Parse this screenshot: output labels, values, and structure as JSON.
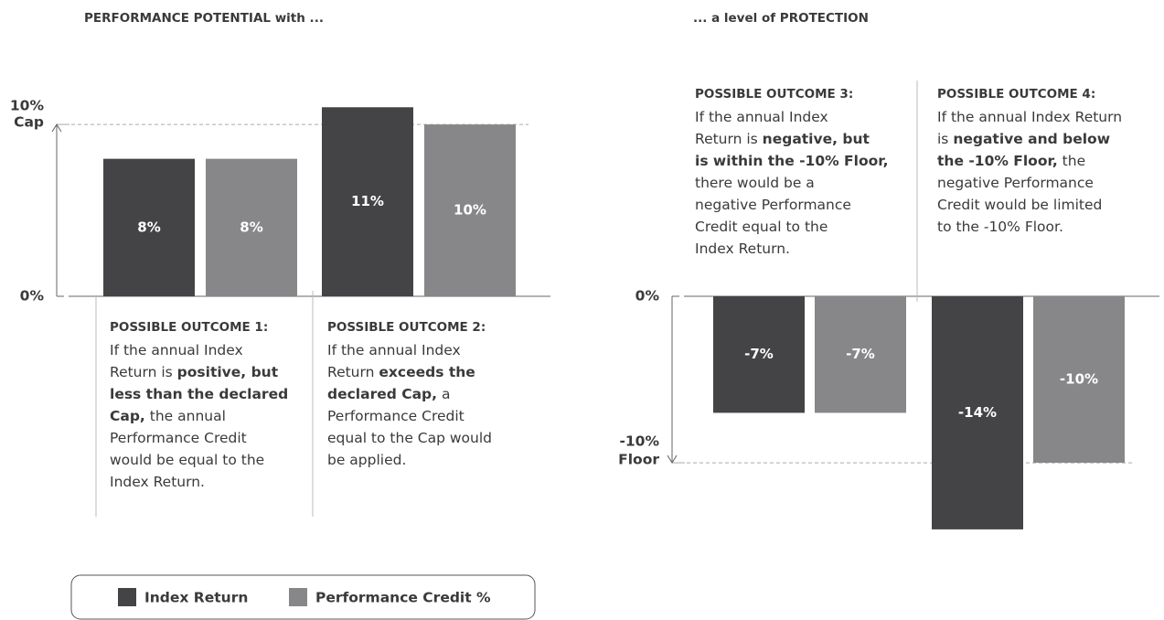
{
  "chart_data": [
    {
      "type": "bar",
      "title": "PERFORMANCE POTENTIAL with ...",
      "ylim": [
        0,
        11.6
      ],
      "yticks": [
        {
          "value": 0,
          "label": "0%"
        },
        {
          "value": 10,
          "label": "10%"
        }
      ],
      "threshold_label": "Cap",
      "series": [
        {
          "name": "Index Return",
          "color": "#444447",
          "values": [
            8,
            11
          ],
          "value_labels": [
            "8%",
            "11%"
          ]
        },
        {
          "name": "Performance Credit %",
          "color": "#87878a",
          "values": [
            8,
            10
          ],
          "value_labels": [
            "8%",
            "10%"
          ]
        }
      ],
      "outcomes": [
        {
          "heading": "POSSIBLE OUTCOME 1:",
          "lines": [
            [
              {
                "text": "If the annual Index"
              }
            ],
            [
              {
                "text": "Return is "
              },
              {
                "text": "positive, but",
                "bold": true
              }
            ],
            [
              {
                "text": "less than the declared",
                "bold": true
              }
            ],
            [
              {
                "text": "Cap,",
                "bold": true
              },
              {
                "text": " the annual"
              }
            ],
            [
              {
                "text": "Performance Credit"
              }
            ],
            [
              {
                "text": "would be equal to the"
              }
            ],
            [
              {
                "text": "Index Return."
              }
            ]
          ]
        },
        {
          "heading": "POSSIBLE OUTCOME 2:",
          "lines": [
            [
              {
                "text": "If the annual Index"
              }
            ],
            [
              {
                "text": "Return "
              },
              {
                "text": "exceeds the",
                "bold": true
              }
            ],
            [
              {
                "text": "declared Cap,",
                "bold": true
              },
              {
                "text": " a"
              }
            ],
            [
              {
                "text": "Performance Credit"
              }
            ],
            [
              {
                "text": "equal to the Cap would"
              }
            ],
            [
              {
                "text": "be applied."
              }
            ]
          ]
        }
      ]
    },
    {
      "type": "bar",
      "title": "... a level of PROTECTION",
      "ylim": [
        -14.5,
        0
      ],
      "yticks": [
        {
          "value": 0,
          "label": "0%"
        },
        {
          "value": -10,
          "label": "-10%"
        }
      ],
      "threshold_label": "Floor",
      "series": [
        {
          "name": "Index Return",
          "color": "#444447",
          "values": [
            -7,
            -14
          ],
          "value_labels": [
            "-7%",
            "-14%"
          ]
        },
        {
          "name": "Performance Credit %",
          "color": "#87878a",
          "values": [
            -7,
            -10
          ],
          "value_labels": [
            "-7%",
            "-10%"
          ]
        }
      ],
      "outcomes": [
        {
          "heading": "POSSIBLE OUTCOME 3:",
          "lines": [
            [
              {
                "text": "If the annual Index"
              }
            ],
            [
              {
                "text": "Return is "
              },
              {
                "text": "negative, but",
                "bold": true
              }
            ],
            [
              {
                "text": "is within the -10% Floor,",
                "bold": true
              }
            ],
            [
              {
                "text": "there would be a"
              }
            ],
            [
              {
                "text": "negative Performance"
              }
            ],
            [
              {
                "text": "Credit equal to the"
              }
            ],
            [
              {
                "text": "Index Return."
              }
            ]
          ]
        },
        {
          "heading": "POSSIBLE OUTCOME 4:",
          "lines": [
            [
              {
                "text": "If the annual Index Return"
              }
            ],
            [
              {
                "text": "is "
              },
              {
                "text": "negative and below",
                "bold": true
              }
            ],
            [
              {
                "text": "the -10% Floor,",
                "bold": true
              },
              {
                "text": " the"
              }
            ],
            [
              {
                "text": "negative Performance"
              }
            ],
            [
              {
                "text": "Credit would be limited"
              }
            ],
            [
              {
                "text": "to the -10% Floor."
              }
            ]
          ]
        }
      ]
    }
  ]
}
